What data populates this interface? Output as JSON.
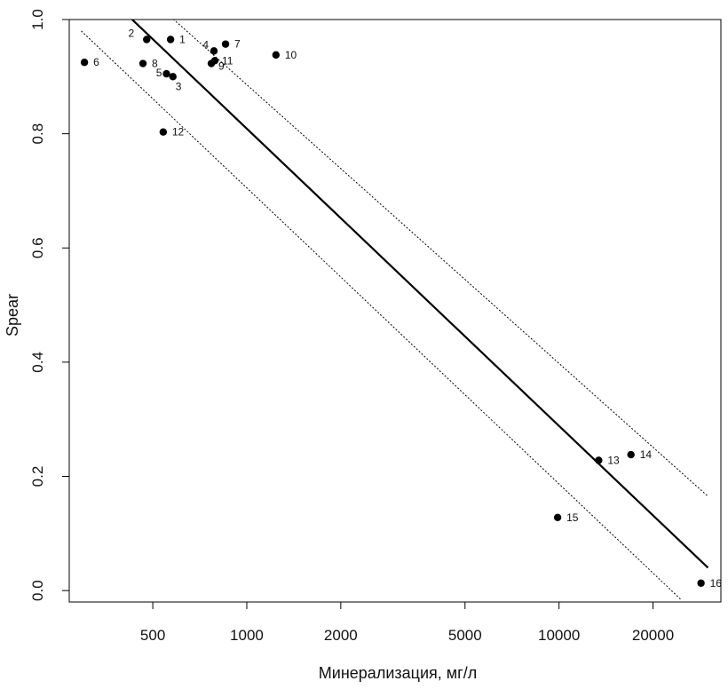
{
  "chart_data": {
    "type": "scatter",
    "xlabel": "Минерализация, мг/л",
    "ylabel": "Spear",
    "x_scale": "log",
    "xlim": [
      270,
      33000
    ],
    "ylim": [
      -0.02,
      1.0
    ],
    "x_ticks": [
      500,
      1000,
      2000,
      5000,
      10000,
      20000
    ],
    "x_tick_labels": [
      "500",
      "1000",
      "2000",
      "5000",
      "10000",
      "20000"
    ],
    "y_ticks": [
      0.0,
      0.2,
      0.4,
      0.6,
      0.8,
      1.0
    ],
    "y_tick_labels": [
      "0.0",
      "0.2",
      "0.4",
      "0.6",
      "0.8",
      "1.0"
    ],
    "grid": false,
    "points": [
      {
        "label": "1",
        "x": 570,
        "y": 0.965
      },
      {
        "label": "2",
        "x": 478,
        "y": 0.965
      },
      {
        "label": "3",
        "x": 580,
        "y": 0.9
      },
      {
        "label": "4",
        "x": 785,
        "y": 0.945
      },
      {
        "label": "5",
        "x": 553,
        "y": 0.905
      },
      {
        "label": "6",
        "x": 302,
        "y": 0.925
      },
      {
        "label": "7",
        "x": 855,
        "y": 0.957
      },
      {
        "label": "8",
        "x": 465,
        "y": 0.923
      },
      {
        "label": "9",
        "x": 770,
        "y": 0.923
      },
      {
        "label": "10",
        "x": 1240,
        "y": 0.938
      },
      {
        "label": "11",
        "x": 790,
        "y": 0.928
      },
      {
        "label": "12",
        "x": 540,
        "y": 0.803
      },
      {
        "label": "13",
        "x": 13400,
        "y": 0.228
      },
      {
        "label": "14",
        "x": 17000,
        "y": 0.238
      },
      {
        "label": "15",
        "x": 9900,
        "y": 0.128
      },
      {
        "label": "16",
        "x": 28500,
        "y": 0.013
      }
    ],
    "fit_line": {
      "x": [
        420,
        30000
      ],
      "y": [
        1.005,
        0.04
      ]
    },
    "confidence_upper": {
      "x": [
        570,
        30000
      ],
      "y": [
        1.005,
        0.165
      ]
    },
    "confidence_lower": {
      "x": [
        295,
        24500
      ],
      "y": [
        0.98,
        -0.015
      ]
    }
  }
}
